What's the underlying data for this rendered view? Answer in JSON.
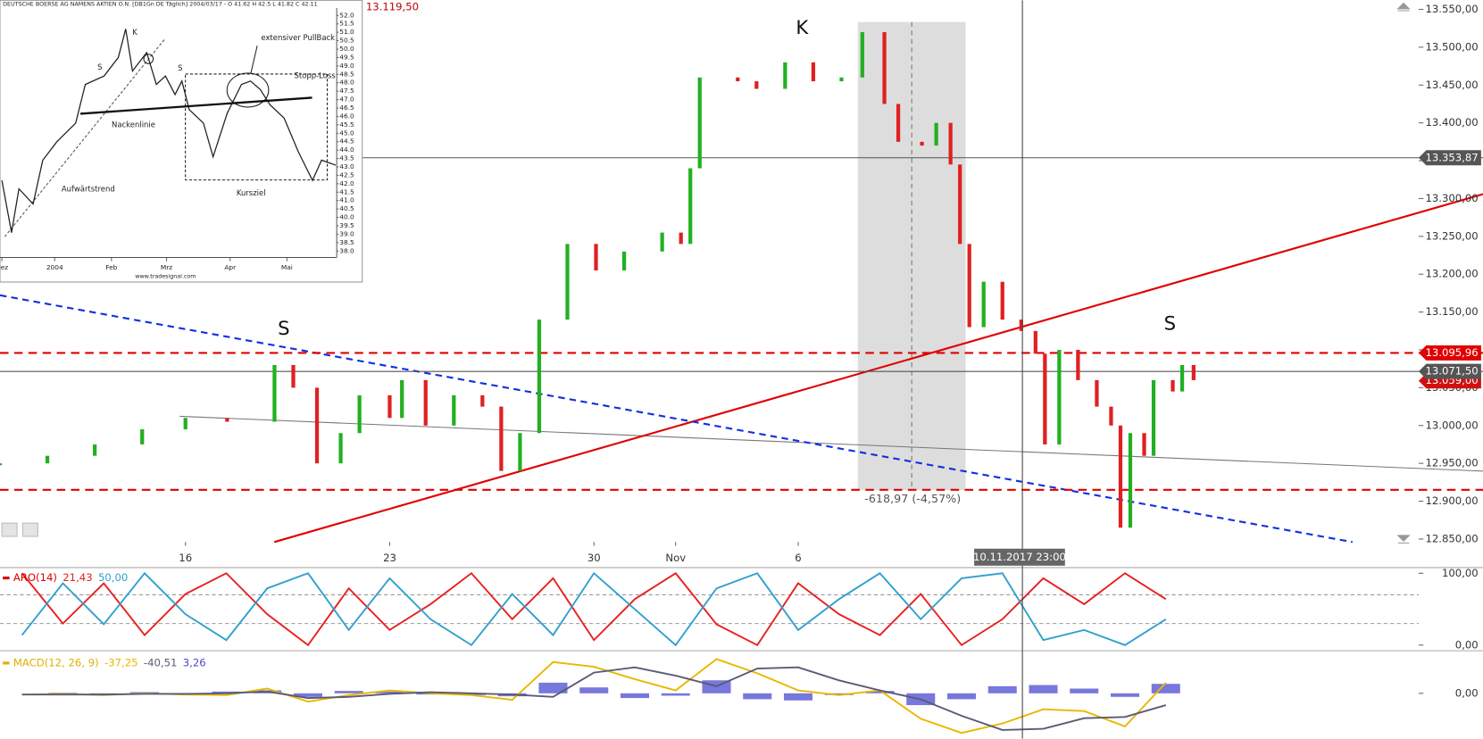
{
  "chart_data": [
    {
      "type": "price",
      "xlim": [
        -4.54,
        30.19
      ],
      "ylim": [
        12846,
        13562
      ],
      "grid": false,
      "up_color": "#22b022",
      "down_color": "#e02020",
      "xticks": [
        {
          "value": 0,
          "label": "16"
        },
        {
          "value": 5,
          "label": "23"
        },
        {
          "value": 10,
          "label": "30"
        },
        {
          "value": 12,
          "label": "Nov"
        },
        {
          "value": 15,
          "label": "6"
        }
      ],
      "yticks": [
        {
          "value": 13550,
          "label": "13.550,00"
        },
        {
          "value": 13500,
          "label": "13.500,00"
        },
        {
          "value": 13450,
          "label": "13.450,00"
        },
        {
          "value": 13400,
          "label": "13.400,00"
        },
        {
          "value": 13350,
          "label": "13.350,00"
        },
        {
          "value": 13300,
          "label": "13.300,00"
        },
        {
          "value": 13250,
          "label": "13.250,00"
        },
        {
          "value": 13200,
          "label": "13.200,00"
        },
        {
          "value": 13150,
          "label": "13.150,00"
        },
        {
          "value": 13100,
          "label": "13.100,00"
        },
        {
          "value": 13050,
          "label": "13.050,00"
        },
        {
          "value": 13000,
          "label": "13.000,00"
        },
        {
          "value": 12950,
          "label": "12.950,00"
        },
        {
          "value": 12900,
          "label": "12.900,00"
        },
        {
          "value": 12850,
          "label": "12.850,00"
        }
      ],
      "x": [
        -4.54,
        -3.38,
        -2.22,
        -1.06,
        0,
        1.02,
        2.18,
        2.64,
        3.22,
        3.8,
        4.26,
        5.0,
        5.3,
        5.88,
        6.57,
        7.27,
        7.73,
        8.19,
        8.66,
        9.35,
        10.05,
        10.74,
        11.67,
        12.13,
        12.36,
        12.59,
        13.52,
        13.98,
        14.68,
        15.37,
        16.06,
        16.57,
        17.11,
        17.45,
        18.03,
        18.38,
        18.73,
        18.96,
        19.19,
        19.54,
        20.0,
        20.46,
        20.81,
        21.04,
        21.39,
        21.85,
        22.31,
        22.66,
        22.89,
        23.13,
        23.47,
        23.7,
        24.17,
        24.4,
        24.68
      ],
      "values": [
        12950,
        12960,
        12975,
        12995,
        13010,
        13005,
        13080,
        13050,
        12950,
        12990,
        13040,
        13010,
        13060,
        13000,
        13040,
        13025,
        12940,
        12990,
        13140,
        13240,
        13205,
        13230,
        13255,
        13240,
        13340,
        13460,
        13455,
        13445,
        13480,
        13455,
        13460,
        13520,
        13425,
        13375,
        13370,
        13400,
        13345,
        13240,
        13130,
        13190,
        13140,
        13125,
        13095,
        12975,
        13100,
        13060,
        13025,
        13000,
        12865,
        12990,
        12960,
        13060,
        13045,
        13080,
        13060
      ],
      "levels": [
        {
          "value": 13353.87,
          "label": "13.353,87",
          "color": "#555555",
          "style": "solid"
        },
        {
          "value": 13059,
          "label": "13.059,00",
          "color": "#d01010",
          "style": "none"
        },
        {
          "value": 13095.96,
          "label": "13.095,96",
          "color": "#e00000",
          "style": "dashed"
        },
        {
          "value": 13071.5,
          "label": "13.071,50",
          "color": "#555555",
          "style": "solid"
        },
        {
          "value": 12915,
          "color": "#e00000",
          "style": "dashed"
        }
      ],
      "annotations": [
        "S",
        "K",
        "S",
        "-618,97 (-4,57%)",
        "C: 13.119,50",
        "10.11.2017 23:00"
      ]
    },
    {
      "type": "line",
      "title": "ARO(14)",
      "title_color": "#e00000",
      "legend_values": [
        "21,43",
        "50,00"
      ],
      "xlim": [
        -4.54,
        30.19
      ],
      "ylim": [
        -7.9,
        107.9
      ],
      "yticks": [
        {
          "value": 100,
          "label": "100,00"
        },
        {
          "value": 0,
          "label": "0,00"
        }
      ],
      "guides": [
        70,
        30
      ],
      "x": [
        -4,
        -3,
        -2,
        -1,
        0,
        1,
        2,
        3,
        4,
        5,
        6,
        7,
        8,
        9,
        10,
        11,
        12,
        13,
        14,
        15,
        16,
        17,
        18,
        19,
        20,
        21,
        22,
        23,
        24
      ],
      "series": [
        {
          "color": "#e82020",
          "values": [
            100,
            30,
            86,
            14,
            71,
            100,
            43,
            0,
            79,
            21,
            57,
            100,
            36,
            93,
            7,
            64,
            100,
            29,
            0,
            86,
            43,
            14,
            71,
            0,
            36,
            93,
            57,
            100,
            64
          ]
        },
        {
          "color": "#30a0d0",
          "values": [
            14,
            86,
            29,
            100,
            43,
            7,
            79,
            100,
            21,
            93,
            36,
            0,
            71,
            14,
            100,
            50,
            0,
            79,
            100,
            21,
            64,
            100,
            36,
            93,
            100,
            7,
            21,
            0,
            36
          ]
        }
      ]
    },
    {
      "type": "macd",
      "title": "MACD(12, 26, 9)",
      "title_color": "#e0b000",
      "legend_values": [
        "-37,25",
        "-40,51",
        "3,26"
      ],
      "xlim": [
        -4.54,
        30.19
      ],
      "ylim": [
        -76.8,
        68.8
      ],
      "yticks": [
        {
          "value": 0,
          "label": "0,00"
        }
      ],
      "x": [
        -4,
        -3,
        -2,
        -1,
        0,
        1,
        2,
        3,
        4,
        5,
        6,
        7,
        8,
        9,
        10,
        11,
        12,
        13,
        14,
        15,
        16,
        17,
        18,
        19,
        20,
        21,
        22,
        23,
        24
      ],
      "series": [
        {
          "color": "#e8b800",
          "kind": "line",
          "values": [
            -2,
            -1,
            -3,
            0,
            -2,
            -3,
            8,
            -14,
            -3,
            5,
            0,
            -3,
            -11,
            53,
            45,
            24,
            5,
            58,
            34,
            5,
            -3,
            5,
            -43,
            -67,
            -51,
            -27,
            -30,
            -56,
            18
          ]
        },
        {
          "color": "#5a5a78",
          "kind": "line",
          "values": [
            -2,
            -2,
            -2,
            -1,
            -1,
            0,
            3,
            -8,
            -6,
            -1,
            2,
            0,
            -2,
            -6,
            35,
            44,
            30,
            12,
            42,
            44,
            22,
            5,
            -10,
            -38,
            -62,
            -60,
            -42,
            -40,
            -20
          ]
        },
        {
          "color": "#4a4ad0",
          "kind": "bar",
          "values": [
            0,
            1,
            -1,
            2,
            -2,
            3,
            5,
            -6,
            4,
            3,
            -2,
            -3,
            -5,
            18,
            10,
            -8,
            -4,
            22,
            -10,
            -12,
            -3,
            4,
            -20,
            -10,
            12,
            14,
            8,
            -6,
            16
          ]
        }
      ]
    },
    {
      "type": "line",
      "title": "DEUTSCHE BOERSE AG NAMENS AKTIEN O.N. [DB1Gn DE  Täglich] 2004/03/17 - O 41.62 H 42.5 L 41.82 C 42.11",
      "source": "www.tradesignal.com",
      "xlim": [
        -0.033,
        5.88
      ],
      "ylim": [
        37.62,
        52.45
      ],
      "xticks": [
        {
          "value": 0,
          "label": "Dez"
        },
        {
          "value": 0.93,
          "label": "2004"
        },
        {
          "value": 1.93,
          "label": "Feb"
        },
        {
          "value": 2.9,
          "label": "Mrz"
        },
        {
          "value": 4.02,
          "label": "Apr"
        },
        {
          "value": 5.02,
          "label": "Mai"
        }
      ],
      "yticks": [
        {
          "value": 52,
          "label": "52.0"
        },
        {
          "value": 51.5,
          "label": "51.5"
        },
        {
          "value": 51,
          "label": "51.0"
        },
        {
          "value": 50.5,
          "label": "50.5"
        },
        {
          "value": 50,
          "label": "50.0"
        },
        {
          "value": 49.5,
          "label": "49.5"
        },
        {
          "value": 49,
          "label": "49.0"
        },
        {
          "value": 48.5,
          "label": "48.5"
        },
        {
          "value": 48,
          "label": "48.0"
        },
        {
          "value": 47.5,
          "label": "47.5"
        },
        {
          "value": 47,
          "label": "47.0"
        },
        {
          "value": 46.5,
          "label": "46.5"
        },
        {
          "value": 46,
          "label": "46.0"
        },
        {
          "value": 45.5,
          "label": "45.5"
        },
        {
          "value": 45,
          "label": "45.0"
        },
        {
          "value": 44.5,
          "label": "44.5"
        },
        {
          "value": 44,
          "label": "44.0"
        },
        {
          "value": 43.5,
          "label": "43.5"
        },
        {
          "value": 43,
          "label": "43.0"
        },
        {
          "value": 42.5,
          "label": "42.5"
        },
        {
          "value": 42,
          "label": "42.0"
        },
        {
          "value": 41.5,
          "label": "41.5"
        },
        {
          "value": 41,
          "label": "41.0"
        },
        {
          "value": 40.5,
          "label": "40.5"
        },
        {
          "value": 40,
          "label": "40.0"
        },
        {
          "value": 39.5,
          "label": "39.5"
        },
        {
          "value": 39,
          "label": "39.0"
        },
        {
          "value": 38.5,
          "label": "38.5"
        },
        {
          "value": 38,
          "label": "38.0"
        }
      ],
      "x": [
        0,
        0.17,
        0.3,
        0.55,
        0.72,
        0.97,
        1.3,
        1.47,
        1.8,
        2.05,
        2.18,
        2.3,
        2.55,
        2.72,
        2.88,
        3.05,
        3.17,
        3.3,
        3.55,
        3.72,
        3.97,
        4.22,
        4.38,
        4.55,
        4.72,
        4.97,
        5.22,
        5.47,
        5.63,
        5.88
      ],
      "series": [
        {
          "color": "#222222",
          "values": [
            42.2,
            39.1,
            41.7,
            40.8,
            43.4,
            44.5,
            45.6,
            47.9,
            48.4,
            49.5,
            51.2,
            48.7,
            49.8,
            47.9,
            48.4,
            47.3,
            48.1,
            46.4,
            45.6,
            43.6,
            46.2,
            47.9,
            48.1,
            47.6,
            46.7,
            45.9,
            43.9,
            42.2,
            43.4,
            43.1
          ]
        }
      ],
      "annotations": [
        "S",
        "K",
        "S",
        "extensiver PullBack",
        "Stopp-Loss",
        "Nackenlinie",
        "Aufwärtstrend",
        "Kursziel"
      ]
    }
  ]
}
